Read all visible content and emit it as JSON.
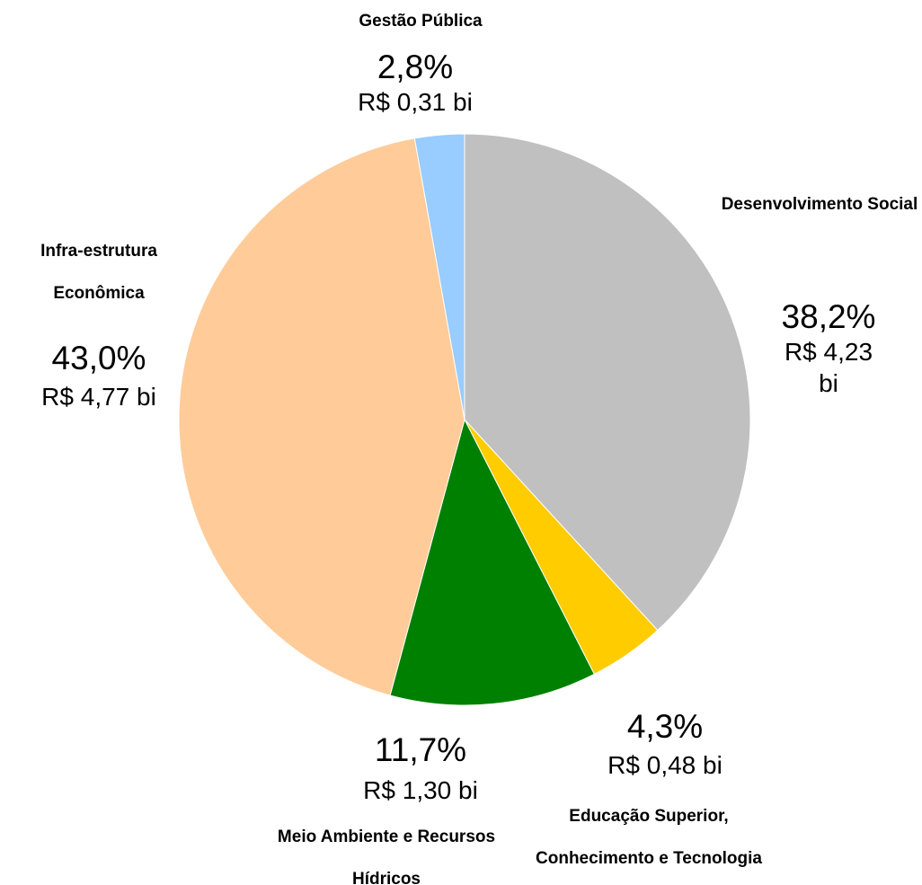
{
  "chart_data": {
    "type": "pie",
    "categories": [
      "Desenvolvimento Social",
      "Educação Superior, Conhecimento e Tecnologia",
      "Meio Ambiente e Recursos Hídricos",
      "Infra-estrutura Econômica",
      "Gestão Pública"
    ],
    "values": [
      38.2,
      4.3,
      11.7,
      43.0,
      2.8
    ],
    "value_labels": [
      "38,2%",
      "4,3%",
      "11,7%",
      "43,0%",
      "2,8%"
    ],
    "amount_labels": [
      "R$ 4,23 bi",
      "R$ 0,48 bi",
      "R$ 1,30 bi",
      "R$ 4,77 bi",
      "R$ 0,31 bi"
    ],
    "colors": [
      "#c0c0c0",
      "#ffcc00",
      "#008000",
      "#ffcc99",
      "#99ccff"
    ]
  }
}
